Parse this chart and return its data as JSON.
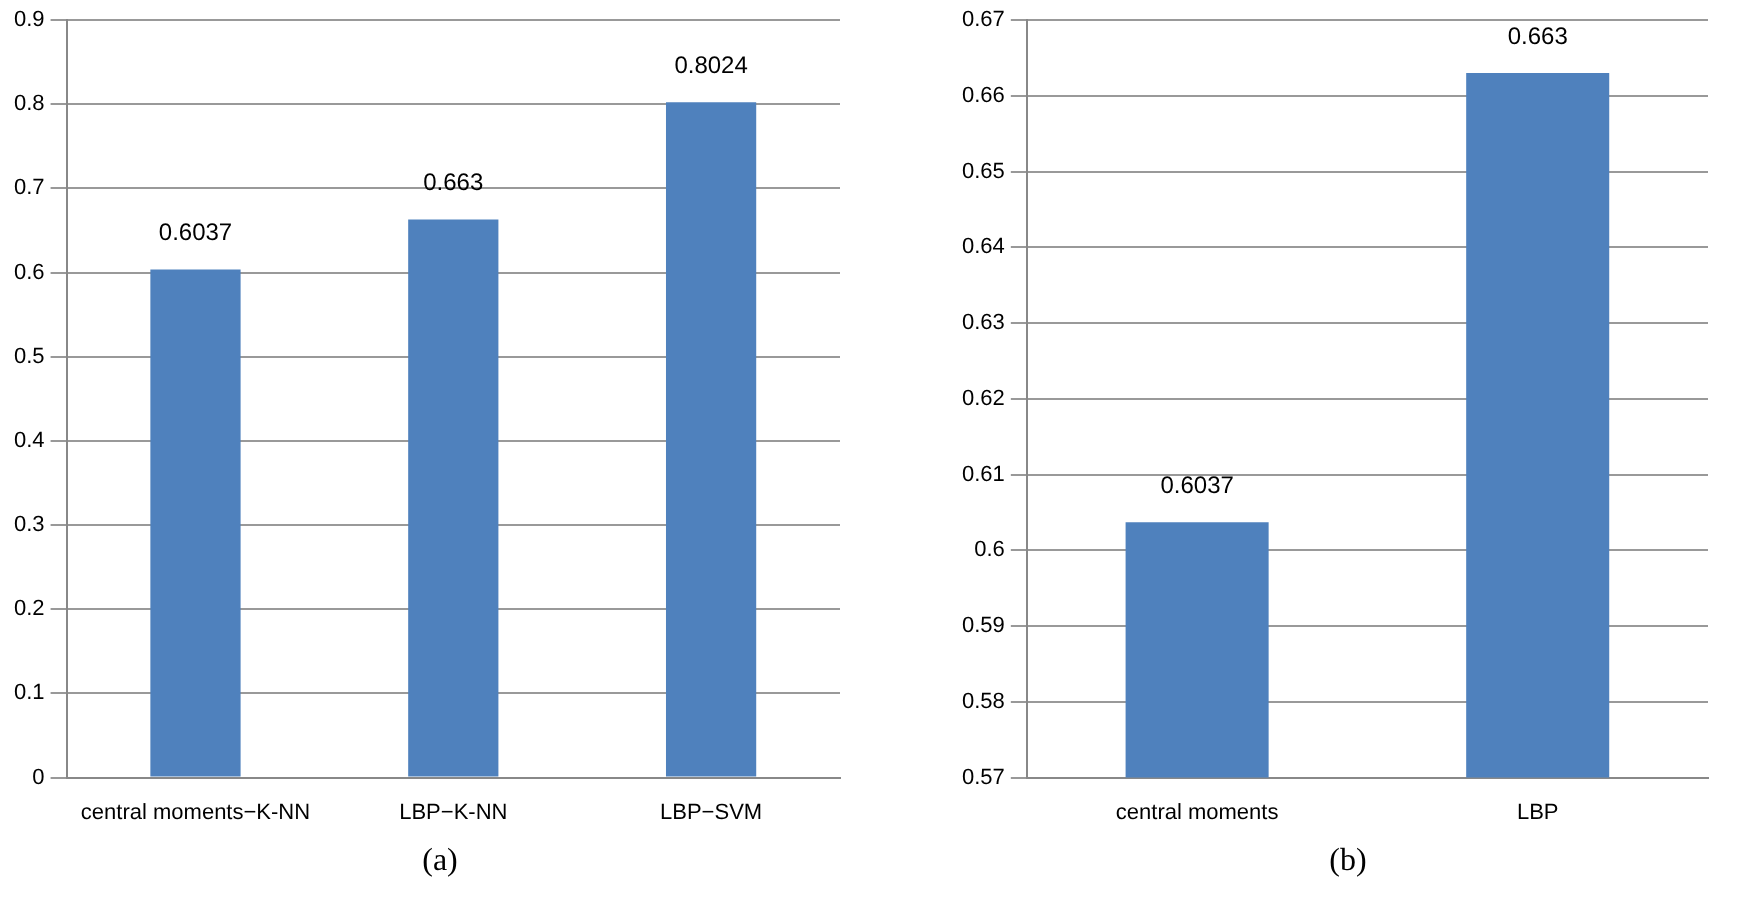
{
  "chart_data": [
    {
      "type": "bar",
      "categories": [
        "central moments−K-NN",
        "LBP−K-NN",
        "LBP−SVM"
      ],
      "values": [
        0.6037,
        0.663,
        0.8024
      ],
      "color": "#4f81bd",
      "ylim": [
        0,
        0.9
      ],
      "yticks": [
        0,
        0.1,
        0.2,
        0.3,
        0.4,
        0.5,
        0.6,
        0.7,
        0.8,
        0.9
      ],
      "grid": "y",
      "data_labels": true,
      "legend": false,
      "annotations": [
        "(a)"
      ]
    },
    {
      "type": "bar",
      "categories": [
        "central moments",
        "LBP"
      ],
      "values": [
        0.6037,
        0.663
      ],
      "color": "#4f81bd",
      "ylim": [
        0.57,
        0.67
      ],
      "yticks": [
        0.57,
        0.58,
        0.59,
        0.6,
        0.61,
        0.62,
        0.63,
        0.64,
        0.65,
        0.66,
        0.67
      ],
      "grid": "y",
      "data_labels": true,
      "legend": false,
      "annotations": [
        "(b)"
      ]
    }
  ]
}
